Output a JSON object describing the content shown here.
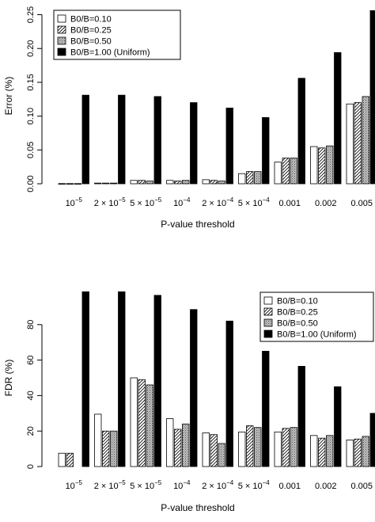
{
  "chart_data": [
    {
      "type": "bar",
      "title": "",
      "xlabel": "P-value threshold",
      "ylabel": "Error (%)",
      "ylim": [
        0,
        0.26
      ],
      "yticks": [
        "0.00",
        "0.05",
        "0.10",
        "0.15",
        "0.20",
        "0.25"
      ],
      "ytick_values": [
        0,
        0.05,
        0.1,
        0.15,
        0.2,
        0.25
      ],
      "categories": [
        {
          "base": "10",
          "exp": "−5"
        },
        {
          "base": "2 × 10",
          "exp": "−5"
        },
        {
          "base": "5 × 10",
          "exp": "−5"
        },
        {
          "base": "10",
          "exp": "−4"
        },
        {
          "base": "2 × 10",
          "exp": "−4"
        },
        {
          "base": "5 × 10",
          "exp": "−4"
        },
        {
          "base": "0.001",
          "exp": ""
        },
        {
          "base": "0.002",
          "exp": ""
        },
        {
          "base": "0.005",
          "exp": ""
        }
      ],
      "legend_position": "top-left",
      "series": [
        {
          "name": "B0/B=0.10",
          "fill": "white",
          "values": [
            0.0003,
            0.001,
            0.005,
            0.005,
            0.006,
            0.015,
            0.032,
            0.055,
            0.118
          ]
        },
        {
          "name": "B0/B=0.25",
          "fill": "hatch",
          "values": [
            0.0003,
            0.001,
            0.005,
            0.004,
            0.005,
            0.018,
            0.038,
            0.053,
            0.12
          ]
        },
        {
          "name": "B0/B=0.50",
          "fill": "dotted",
          "values": [
            0.0003,
            0.001,
            0.004,
            0.005,
            0.004,
            0.018,
            0.038,
            0.056,
            0.129
          ]
        },
        {
          "name": "B0/B=1.00 (Uniform)",
          "fill": "black",
          "values": [
            0.131,
            0.131,
            0.129,
            0.12,
            0.112,
            0.098,
            0.156,
            0.194,
            0.256
          ]
        }
      ]
    },
    {
      "type": "bar",
      "title": "",
      "xlabel": "P-value threshold",
      "ylabel": "FDR (%)",
      "ylim": [
        0,
        100
      ],
      "yticks": [
        "0",
        "20",
        "40",
        "60",
        "80"
      ],
      "ytick_values": [
        0,
        20,
        40,
        60,
        80
      ],
      "categories": [
        {
          "base": "10",
          "exp": "−5"
        },
        {
          "base": "2 × 10",
          "exp": "−5"
        },
        {
          "base": "5 × 10",
          "exp": "−5"
        },
        {
          "base": "10",
          "exp": "−4"
        },
        {
          "base": "2 × 10",
          "exp": "−4"
        },
        {
          "base": "5 × 10",
          "exp": "−4"
        },
        {
          "base": "0.001",
          "exp": ""
        },
        {
          "base": "0.002",
          "exp": ""
        },
        {
          "base": "0.005",
          "exp": ""
        }
      ],
      "legend_position": "top-right",
      "series": [
        {
          "name": "B0/B=0.10",
          "fill": "white",
          "values": [
            7.5,
            29.5,
            50,
            27,
            19,
            19.5,
            19.5,
            17.5,
            15
          ]
        },
        {
          "name": "B0/B=0.25",
          "fill": "hatch",
          "values": [
            7.5,
            20,
            49,
            21,
            18,
            23,
            21.5,
            16,
            15.5
          ]
        },
        {
          "name": "B0/B=0.50",
          "fill": "dotted",
          "values": [
            0,
            20,
            46,
            24,
            13,
            22,
            22,
            17.5,
            17
          ]
        },
        {
          "name": "B0/B=1.00 (Uniform)",
          "fill": "black",
          "values": [
            98.5,
            98.5,
            96.5,
            88.5,
            82,
            65,
            56.5,
            45,
            30
          ]
        }
      ]
    }
  ]
}
